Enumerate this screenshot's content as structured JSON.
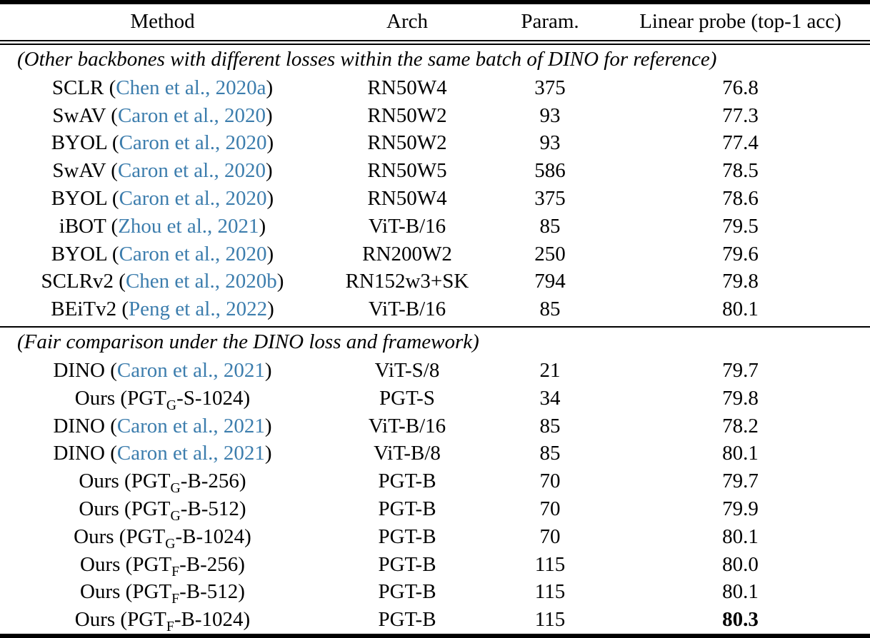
{
  "colors": {
    "citation": "#3c7dad"
  },
  "table": {
    "columns": [
      "Method",
      "Arch",
      "Param.",
      "Linear probe (top-1 acc)"
    ],
    "sections": [
      {
        "note": "(Other backbones with different losses within the same batch of DINO for reference)",
        "rows": [
          {
            "method": {
              "pre": "SCLR (",
              "cite": "Chen et al., 2020a",
              "post": ")"
            },
            "arch": "RN50W4",
            "param": "375",
            "acc": "76.8",
            "bold": false
          },
          {
            "method": {
              "pre": "SwAV (",
              "cite": "Caron et al., 2020",
              "post": ")"
            },
            "arch": "RN50W2",
            "param": "93",
            "acc": "77.3",
            "bold": false
          },
          {
            "method": {
              "pre": "BYOL (",
              "cite": "Caron et al., 2020",
              "post": ")"
            },
            "arch": "RN50W2",
            "param": "93",
            "acc": "77.4",
            "bold": false
          },
          {
            "method": {
              "pre": "SwAV (",
              "cite": "Caron et al., 2020",
              "post": ")"
            },
            "arch": "RN50W5",
            "param": "586",
            "acc": "78.5",
            "bold": false
          },
          {
            "method": {
              "pre": "BYOL (",
              "cite": "Caron et al., 2020",
              "post": ")"
            },
            "arch": "RN50W4",
            "param": "375",
            "acc": "78.6",
            "bold": false
          },
          {
            "method": {
              "pre": "iBOT (",
              "cite": "Zhou et al., 2021",
              "post": ")"
            },
            "arch": "ViT-B/16",
            "param": "85",
            "acc": "79.5",
            "bold": false
          },
          {
            "method": {
              "pre": "BYOL (",
              "cite": "Caron et al., 2020",
              "post": ")"
            },
            "arch": "RN200W2",
            "param": "250",
            "acc": "79.6",
            "bold": false
          },
          {
            "method": {
              "pre": "SCLRv2 (",
              "cite": "Chen et al., 2020b",
              "post": ")"
            },
            "arch": "RN152w3+SK",
            "param": "794",
            "acc": "79.8",
            "bold": false
          },
          {
            "method": {
              "pre": "BEiTv2 (",
              "cite": "Peng et al., 2022",
              "post": ")"
            },
            "arch": "ViT-B/16",
            "param": "85",
            "acc": "80.1",
            "bold": false
          }
        ]
      },
      {
        "note": "(Fair comparison under the DINO loss and framework)",
        "rows": [
          {
            "method": {
              "pre": "DINO (",
              "cite": "Caron et al., 2021",
              "post": ")"
            },
            "arch": "ViT-S/8",
            "param": "21",
            "acc": "79.7",
            "bold": false
          },
          {
            "method": {
              "pre": "Ours (PGT",
              "sub": "G",
              "post": "-S-1024)"
            },
            "arch": "PGT-S",
            "param": "34",
            "acc": "79.8",
            "bold": false
          },
          {
            "method": {
              "pre": "DINO (",
              "cite": "Caron et al., 2021",
              "post": ")"
            },
            "arch": "ViT-B/16",
            "param": "85",
            "acc": "78.2",
            "bold": false
          },
          {
            "method": {
              "pre": "DINO (",
              "cite": "Caron et al., 2021",
              "post": ")"
            },
            "arch": "ViT-B/8",
            "param": "85",
            "acc": "80.1",
            "bold": false
          },
          {
            "method": {
              "pre": "Ours (PGT",
              "sub": "G",
              "post": "-B-256)"
            },
            "arch": "PGT-B",
            "param": "70",
            "acc": "79.7",
            "bold": false
          },
          {
            "method": {
              "pre": "Ours (PGT",
              "sub": "G",
              "post": "-B-512)"
            },
            "arch": "PGT-B",
            "param": "70",
            "acc": "79.9",
            "bold": false
          },
          {
            "method": {
              "pre": "Ours (PGT",
              "sub": "G",
              "post": "-B-1024)"
            },
            "arch": "PGT-B",
            "param": "70",
            "acc": "80.1",
            "bold": false
          },
          {
            "method": {
              "pre": "Ours (PGT",
              "sub": "F",
              "post": "-B-256)"
            },
            "arch": "PGT-B",
            "param": "115",
            "acc": "80.0",
            "bold": false
          },
          {
            "method": {
              "pre": "Ours (PGT",
              "sub": "F",
              "post": "-B-512)"
            },
            "arch": "PGT-B",
            "param": "115",
            "acc": "80.1",
            "bold": false
          },
          {
            "method": {
              "pre": "Ours (PGT",
              "sub": "F",
              "post": "-B-1024)"
            },
            "arch": "PGT-B",
            "param": "115",
            "acc": "80.3",
            "bold": true
          }
        ]
      }
    ]
  }
}
